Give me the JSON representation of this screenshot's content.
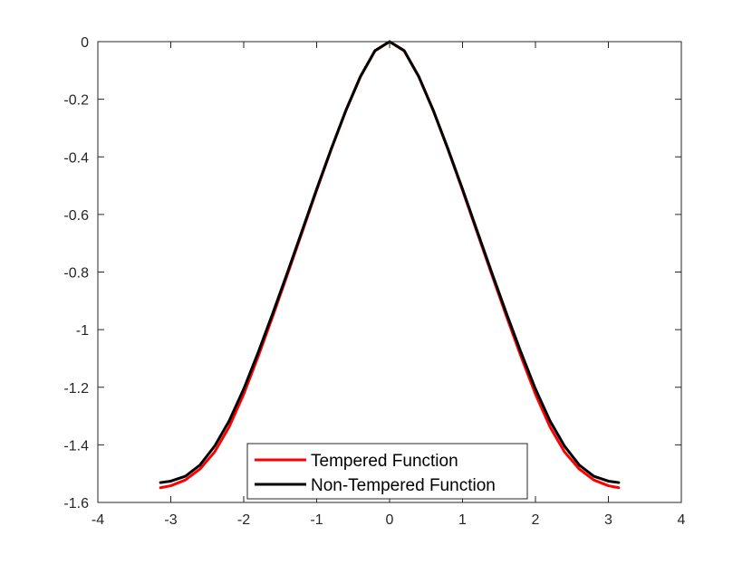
{
  "chart_data": {
    "type": "line",
    "title": "",
    "xlabel": "",
    "ylabel": "",
    "xlim": [
      -4,
      4
    ],
    "ylim": [
      -1.6,
      0
    ],
    "xticks": [
      -4,
      -3,
      -2,
      -1,
      0,
      1,
      2,
      3,
      4
    ],
    "yticks": [
      0,
      -0.2,
      -0.4,
      -0.6,
      -0.8,
      -1,
      -1.2,
      -1.4,
      -1.6
    ],
    "xtick_labels": [
      "-4",
      "-3",
      "-2",
      "-1",
      "0",
      "1",
      "2",
      "3",
      "4"
    ],
    "ytick_labels": [
      "0",
      "-0.2",
      "-0.4",
      "-0.6",
      "-0.8",
      "-1",
      "-1.2",
      "-1.4",
      "-1.6"
    ],
    "grid": false,
    "legend_position": "bottom-center",
    "x": [
      -3.1416,
      -3.0,
      -2.8,
      -2.6,
      -2.4,
      -2.2,
      -2.0,
      -1.8,
      -1.6,
      -1.4,
      -1.2,
      -1.0,
      -0.8,
      -0.6,
      -0.4,
      -0.2,
      0.0,
      0.2,
      0.4,
      0.6,
      0.8,
      1.0,
      1.2,
      1.4,
      1.6,
      1.8,
      2.0,
      2.2,
      2.4,
      2.6,
      2.8,
      3.0,
      3.1416
    ],
    "series": [
      {
        "name": "Tempered Function",
        "color": "#ff0000",
        "values": [
          -1.549,
          -1.542,
          -1.522,
          -1.484,
          -1.425,
          -1.338,
          -1.224,
          -1.092,
          -0.952,
          -0.808,
          -0.662,
          -0.516,
          -0.374,
          -0.24,
          -0.122,
          -0.032,
          0.0,
          -0.032,
          -0.122,
          -0.24,
          -0.374,
          -0.516,
          -0.662,
          -0.808,
          -0.952,
          -1.092,
          -1.224,
          -1.338,
          -1.425,
          -1.484,
          -1.522,
          -1.542,
          -1.549
        ]
      },
      {
        "name": "Non-Tempered Function",
        "color": "#000000",
        "values": [
          -1.531,
          -1.526,
          -1.509,
          -1.47,
          -1.405,
          -1.317,
          -1.206,
          -1.078,
          -0.942,
          -0.801,
          -0.657,
          -0.512,
          -0.372,
          -0.239,
          -0.121,
          -0.031,
          0.0,
          -0.031,
          -0.121,
          -0.239,
          -0.372,
          -0.512,
          -0.657,
          -0.801,
          -0.942,
          -1.078,
          -1.206,
          -1.317,
          -1.405,
          -1.47,
          -1.509,
          -1.526,
          -1.531
        ]
      }
    ]
  }
}
